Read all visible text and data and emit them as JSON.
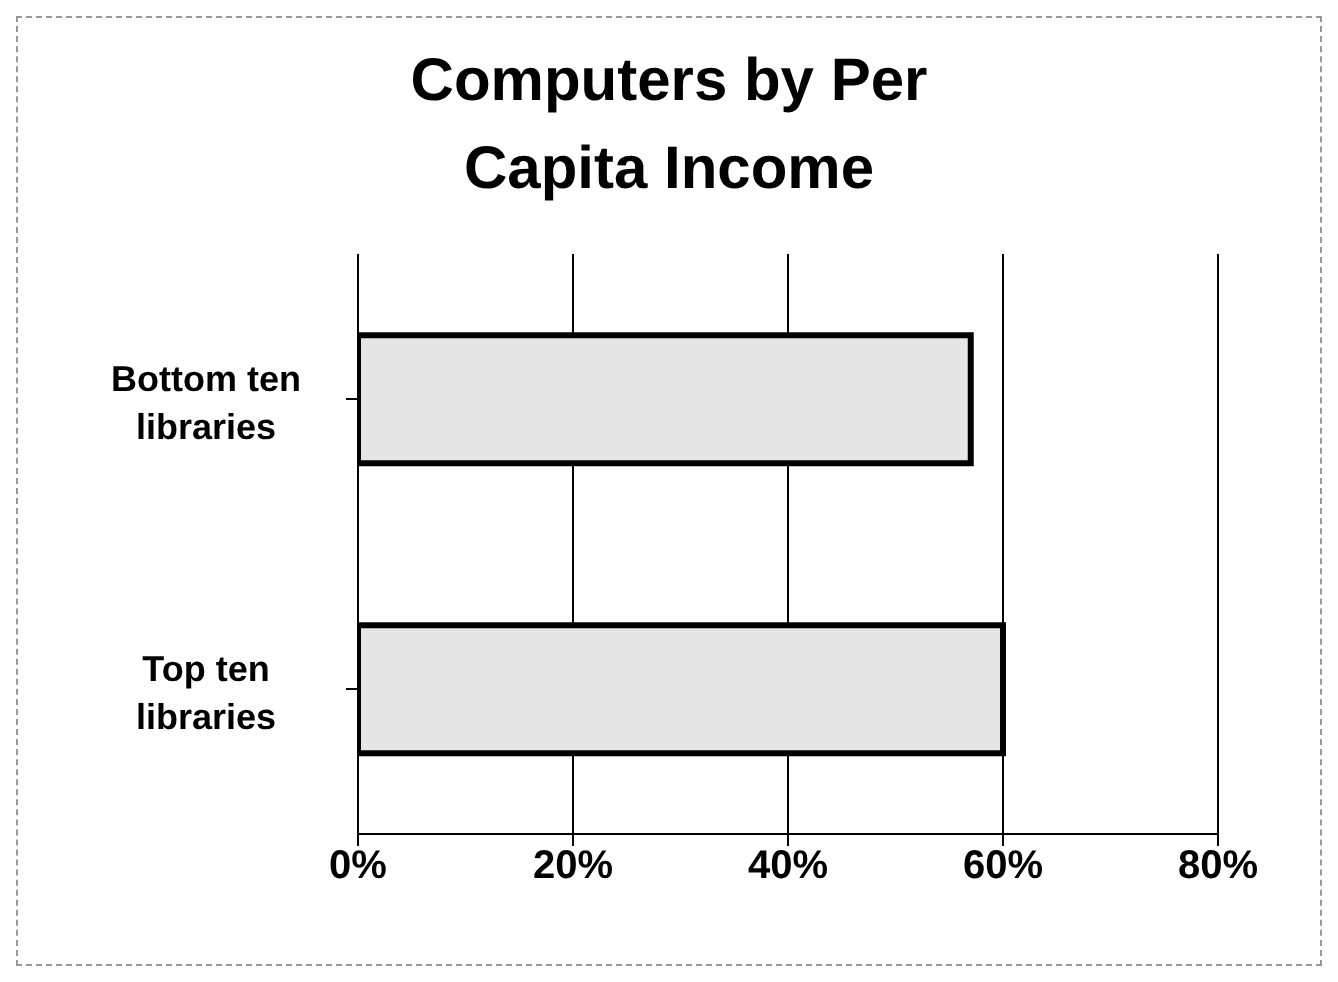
{
  "chart_data": {
    "type": "bar",
    "orientation": "horizontal",
    "title": "Computers by Per Capita Income",
    "categories": [
      "Bottom ten libraries",
      "Top ten libraries"
    ],
    "values": [
      57,
      60
    ],
    "color": "#e6e6e6",
    "xlim": [
      0,
      80
    ],
    "xticks": [
      {
        "value": 0,
        "label": "0%"
      },
      {
        "value": 20,
        "label": "20%"
      },
      {
        "value": 40,
        "label": "40%"
      },
      {
        "value": 60,
        "label": "60%"
      },
      {
        "value": 80,
        "label": "80%"
      }
    ],
    "grid": "x"
  }
}
